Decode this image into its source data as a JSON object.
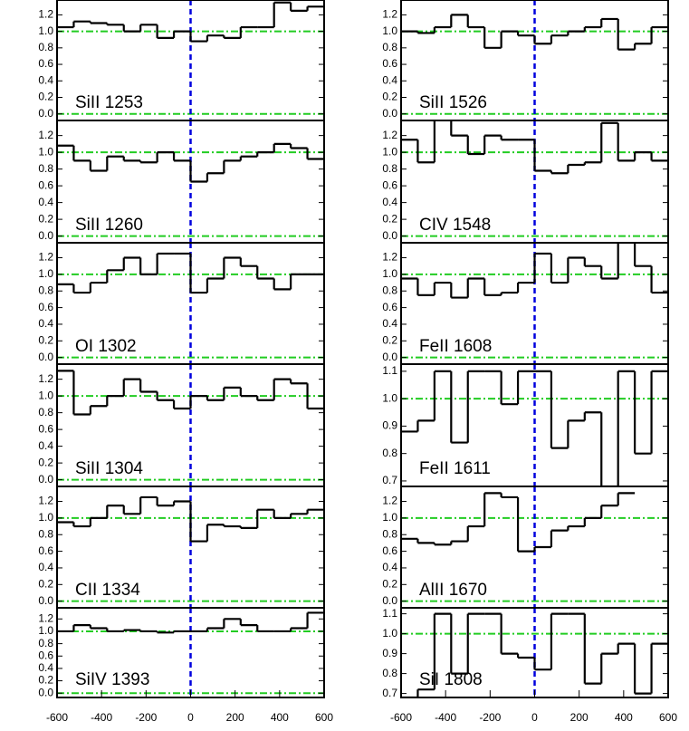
{
  "chart_data": [
    {
      "type": "step",
      "title": "SiII 1253",
      "x": [
        -562.5,
        -487.5,
        -412.5,
        -337.5,
        -262.5,
        -187.5,
        -112.5,
        -37.5,
        37.5,
        112.5,
        187.5,
        262.5,
        337.5,
        412.5,
        487.5,
        562.5
      ],
      "values": [
        1.05,
        1.12,
        1.1,
        1.08,
        1.0,
        1.08,
        0.92,
        1.0,
        0.88,
        0.95,
        0.92,
        1.05,
        1.05,
        1.35,
        1.25,
        1.3
      ],
      "xlim": [
        -600,
        600
      ],
      "ylim": [
        -0.08,
        1.38
      ],
      "yticks": [
        {
          "value": 0,
          "label": "0.0"
        },
        0.2,
        0.4,
        0.6,
        0.8,
        {
          "value": 1,
          "label": "1.0"
        },
        1.2
      ],
      "ref_y": [
        0,
        1
      ],
      "ref_x": 0
    },
    {
      "type": "step",
      "title": "SiII 1260",
      "x": [
        -562.5,
        -487.5,
        -412.5,
        -337.5,
        -262.5,
        -187.5,
        -112.5,
        -37.5,
        37.5,
        112.5,
        187.5,
        262.5,
        337.5,
        412.5,
        487.5,
        562.5
      ],
      "values": [
        1.08,
        0.9,
        0.78,
        0.95,
        0.9,
        0.88,
        1.0,
        0.9,
        0.65,
        0.75,
        0.9,
        0.95,
        1.0,
        1.1,
        1.05,
        0.92
      ],
      "xlim": [
        -600,
        600
      ],
      "ylim": [
        -0.08,
        1.38
      ],
      "yticks": [
        {
          "value": 0,
          "label": "0.0"
        },
        0.2,
        0.4,
        0.6,
        0.8,
        {
          "value": 1,
          "label": "1.0"
        },
        1.2
      ],
      "ref_y": [
        0,
        1
      ],
      "ref_x": 0
    },
    {
      "type": "step",
      "title": "OI 1302",
      "x": [
        -562.5,
        -487.5,
        -412.5,
        -337.5,
        -262.5,
        -187.5,
        -112.5,
        -37.5,
        37.5,
        112.5,
        187.5,
        262.5,
        337.5,
        412.5,
        487.5,
        562.5
      ],
      "values": [
        0.88,
        0.78,
        0.9,
        1.05,
        1.2,
        1.0,
        1.25,
        1.25,
        0.78,
        0.95,
        1.2,
        1.1,
        0.95,
        0.82,
        1.0,
        1.0
      ],
      "xlim": [
        -600,
        600
      ],
      "ylim": [
        -0.08,
        1.38
      ],
      "yticks": [
        {
          "value": 0,
          "label": "0.0"
        },
        0.2,
        0.4,
        0.6,
        0.8,
        {
          "value": 1,
          "label": "1.0"
        },
        1.2
      ],
      "ref_y": [
        0,
        1
      ],
      "ref_x": 0
    },
    {
      "type": "step",
      "title": "SiII 1304",
      "x": [
        -562.5,
        -487.5,
        -412.5,
        -337.5,
        -262.5,
        -187.5,
        -112.5,
        -37.5,
        37.5,
        112.5,
        187.5,
        262.5,
        337.5,
        412.5,
        487.5,
        562.5
      ],
      "values": [
        1.3,
        0.78,
        0.88,
        1.0,
        1.2,
        1.05,
        0.95,
        0.85,
        1.0,
        0.95,
        1.1,
        1.0,
        0.95,
        1.2,
        1.15,
        0.85
      ],
      "xlim": [
        -600,
        600
      ],
      "ylim": [
        -0.08,
        1.38
      ],
      "yticks": [
        {
          "value": 0,
          "label": "0.0"
        },
        0.2,
        0.4,
        0.6,
        0.8,
        {
          "value": 1,
          "label": "1.0"
        },
        1.2
      ],
      "ref_y": [
        0,
        1
      ],
      "ref_x": 0
    },
    {
      "type": "step",
      "title": "CII 1334",
      "x": [
        -562.5,
        -487.5,
        -412.5,
        -337.5,
        -262.5,
        -187.5,
        -112.5,
        -37.5,
        37.5,
        112.5,
        187.5,
        262.5,
        337.5,
        412.5,
        487.5,
        562.5
      ],
      "values": [
        0.95,
        0.9,
        1.0,
        1.15,
        1.05,
        1.25,
        1.15,
        1.2,
        0.72,
        0.92,
        0.9,
        0.88,
        1.1,
        1.0,
        1.05,
        1.1
      ],
      "xlim": [
        -600,
        600
      ],
      "ylim": [
        -0.08,
        1.38
      ],
      "yticks": [
        {
          "value": 0,
          "label": "0.0"
        },
        0.2,
        0.4,
        0.6,
        0.8,
        {
          "value": 1,
          "label": "1.0"
        },
        1.2
      ],
      "ref_y": [
        0,
        1
      ],
      "ref_x": 0
    },
    {
      "type": "step",
      "title": "SiIV 1393",
      "x": [
        -562.5,
        -487.5,
        -412.5,
        -337.5,
        -262.5,
        -187.5,
        -112.5,
        -37.5,
        37.5,
        112.5,
        187.5,
        262.5,
        337.5,
        412.5,
        487.5,
        562.5
      ],
      "values": [
        1.0,
        1.1,
        1.05,
        1.0,
        1.02,
        1.0,
        0.98,
        1.0,
        1.0,
        1.05,
        1.2,
        1.1,
        1.0,
        1.0,
        1.05,
        1.3
      ],
      "xlim": [
        -600,
        600
      ],
      "ylim": [
        -0.07,
        1.38
      ],
      "yticks": [
        {
          "value": 0,
          "label": "0.0"
        },
        0.2,
        0.4,
        0.6,
        0.8,
        {
          "value": 1,
          "label": "1.0"
        },
        1.2
      ],
      "xticks": [
        -600,
        -400,
        -200,
        0,
        200,
        400,
        600
      ],
      "ref_y": [
        0,
        1
      ],
      "ref_x": 0
    },
    {
      "type": "step",
      "title": "SiII 1526",
      "x": [
        -562.5,
        -487.5,
        -412.5,
        -337.5,
        -262.5,
        -187.5,
        -112.5,
        -37.5,
        37.5,
        112.5,
        187.5,
        262.5,
        337.5,
        412.5,
        487.5,
        562.5
      ],
      "values": [
        1.0,
        0.98,
        1.05,
        1.2,
        1.05,
        0.8,
        1.0,
        0.95,
        0.85,
        0.95,
        1.0,
        1.05,
        1.15,
        0.78,
        0.85,
        1.05
      ],
      "xlim": [
        -600,
        600
      ],
      "ylim": [
        -0.08,
        1.38
      ],
      "yticks": [
        {
          "value": 0,
          "label": "0.0"
        },
        0.2,
        0.4,
        0.6,
        0.8,
        {
          "value": 1,
          "label": "1.0"
        },
        1.2
      ],
      "ref_y": [
        0,
        1
      ],
      "ref_x": 0
    },
    {
      "type": "step",
      "title": "CIV 1548",
      "x": [
        -562.5,
        -487.5,
        -412.5,
        -337.5,
        -262.5,
        -187.5,
        -112.5,
        -37.5,
        37.5,
        112.5,
        187.5,
        262.5,
        337.5,
        412.5,
        487.5,
        562.5
      ],
      "values": [
        1.15,
        0.88,
        1.4,
        1.2,
        0.98,
        1.2,
        1.15,
        1.15,
        0.78,
        0.75,
        0.85,
        0.88,
        1.35,
        0.9,
        1.0,
        0.9
      ],
      "xlim": [
        -600,
        600
      ],
      "ylim": [
        -0.08,
        1.38
      ],
      "yticks": [
        {
          "value": 0,
          "label": "0.0"
        },
        0.2,
        0.4,
        0.6,
        0.8,
        {
          "value": 1,
          "label": "1.0"
        },
        1.2
      ],
      "ref_y": [
        0,
        1
      ],
      "ref_x": 0
    },
    {
      "type": "step",
      "title": "FeII 1608",
      "x": [
        -562.5,
        -487.5,
        -412.5,
        -337.5,
        -262.5,
        -187.5,
        -112.5,
        -37.5,
        37.5,
        112.5,
        187.5,
        262.5,
        337.5,
        412.5,
        487.5,
        562.5
      ],
      "values": [
        0.95,
        0.75,
        0.9,
        0.72,
        0.95,
        0.75,
        0.78,
        0.9,
        1.25,
        0.9,
        1.2,
        1.1,
        0.95,
        1.4,
        1.1,
        0.78
      ],
      "xlim": [
        -600,
        600
      ],
      "ylim": [
        -0.08,
        1.38
      ],
      "yticks": [
        {
          "value": 0,
          "label": "0.0"
        },
        0.2,
        0.4,
        0.6,
        0.8,
        {
          "value": 1,
          "label": "1.0"
        },
        1.2
      ],
      "ref_y": [
        0,
        1
      ],
      "ref_x": 0
    },
    {
      "type": "step",
      "title": "FeII 1611",
      "x": [
        -562.5,
        -487.5,
        -412.5,
        -337.5,
        -262.5,
        -187.5,
        -112.5,
        -37.5,
        37.5,
        112.5,
        187.5,
        262.5,
        337.5,
        412.5,
        487.5,
        562.5
      ],
      "values": [
        0.88,
        0.92,
        1.1,
        0.84,
        1.1,
        1.1,
        0.98,
        1.1,
        1.1,
        0.82,
        0.92,
        0.95,
        0.68,
        1.1,
        0.8,
        1.1
      ],
      "xlim": [
        -600,
        600
      ],
      "ylim": [
        0.68,
        1.126
      ],
      "yticks": [
        0.7,
        0.8,
        0.9,
        {
          "value": 1,
          "label": "1.0"
        },
        1.1
      ],
      "ref_y": [
        1
      ],
      "ref_x": 0
    },
    {
      "type": "step",
      "title": "AlII 1670",
      "x": [
        -562.5,
        -487.5,
        -412.5,
        -337.5,
        -262.5,
        -187.5,
        -112.5,
        -37.5,
        37.5,
        112.5,
        187.5,
        262.5,
        337.5,
        412.5,
        487.5,
        562.5
      ],
      "values": [
        0.75,
        0.7,
        0.68,
        0.72,
        0.9,
        1.3,
        1.25,
        0.6,
        0.65,
        0.85,
        0.9,
        1.0,
        1.15,
        1.3,
        null,
        null
      ],
      "xlim": [
        -600,
        600
      ],
      "ylim": [
        -0.08,
        1.38
      ],
      "yticks": [
        {
          "value": 0,
          "label": "0.0"
        },
        0.2,
        0.4,
        0.6,
        0.8,
        {
          "value": 1,
          "label": "1.0"
        },
        1.2
      ],
      "ref_y": [
        0,
        1
      ],
      "ref_x": 0
    },
    {
      "type": "step",
      "title": "SiI 1808",
      "x": [
        -562.5,
        -487.5,
        -412.5,
        -337.5,
        -262.5,
        -187.5,
        -112.5,
        -37.5,
        37.5,
        112.5,
        187.5,
        262.5,
        337.5,
        412.5,
        487.5,
        562.5
      ],
      "values": [
        0.68,
        0.72,
        1.1,
        0.8,
        1.1,
        1.1,
        0.9,
        0.88,
        0.82,
        1.1,
        1.1,
        0.75,
        0.9,
        0.95,
        0.7,
        0.95
      ],
      "xlim": [
        -600,
        600
      ],
      "ylim": [
        0.68,
        1.13
      ],
      "yticks": [
        0.7,
        0.8,
        0.9,
        {
          "value": 1,
          "label": "1.0"
        },
        1.1
      ],
      "xticks": [
        -600,
        -400,
        -200,
        0,
        200,
        400,
        600
      ],
      "ref_y": [
        1
      ],
      "ref_x": 0
    }
  ]
}
